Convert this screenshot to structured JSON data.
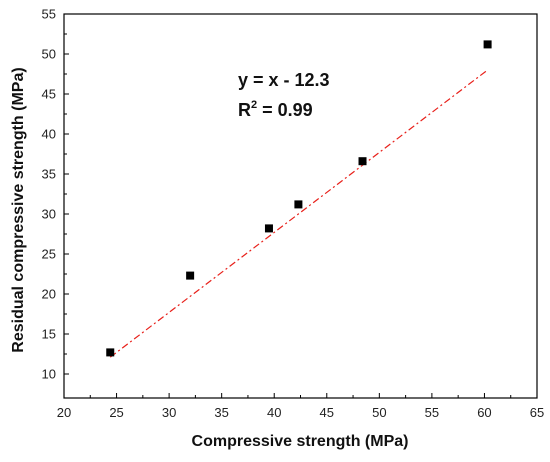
{
  "chart_data": {
    "type": "scatter",
    "title": "",
    "xlabel": "Compressive strength (MPa)",
    "ylabel": "Residual compressive strength (MPa)",
    "xlim": [
      20,
      65
    ],
    "ylim": [
      7,
      55
    ],
    "x_ticks": [
      "20",
      "25",
      "30",
      "35",
      "40",
      "45",
      "50",
      "55",
      "60",
      "65"
    ],
    "y_ticks": [
      "10",
      "15",
      "20",
      "25",
      "30",
      "35",
      "40",
      "45",
      "50",
      "55"
    ],
    "series": [
      {
        "marker": "square",
        "color": "#000000",
        "points": [
          {
            "x": 24.4,
            "y": 12.7
          },
          {
            "x": 32.0,
            "y": 22.3
          },
          {
            "x": 39.5,
            "y": 28.2
          },
          {
            "x": 42.3,
            "y": 31.2
          },
          {
            "x": 48.4,
            "y": 36.6
          },
          {
            "x": 60.3,
            "y": 51.2
          }
        ]
      }
    ],
    "fit_line": {
      "style": "dash-dot",
      "color": "#e8201a",
      "x_range": [
        24.4,
        60.3
      ],
      "slope": 1,
      "intercept": -12.3
    },
    "annotations": {
      "equation": "y = x - 12.3",
      "r2_prefix": "R",
      "r2_superscript": "2",
      "r2_value": " = 0.99"
    },
    "grid": false,
    "legend": "none"
  }
}
